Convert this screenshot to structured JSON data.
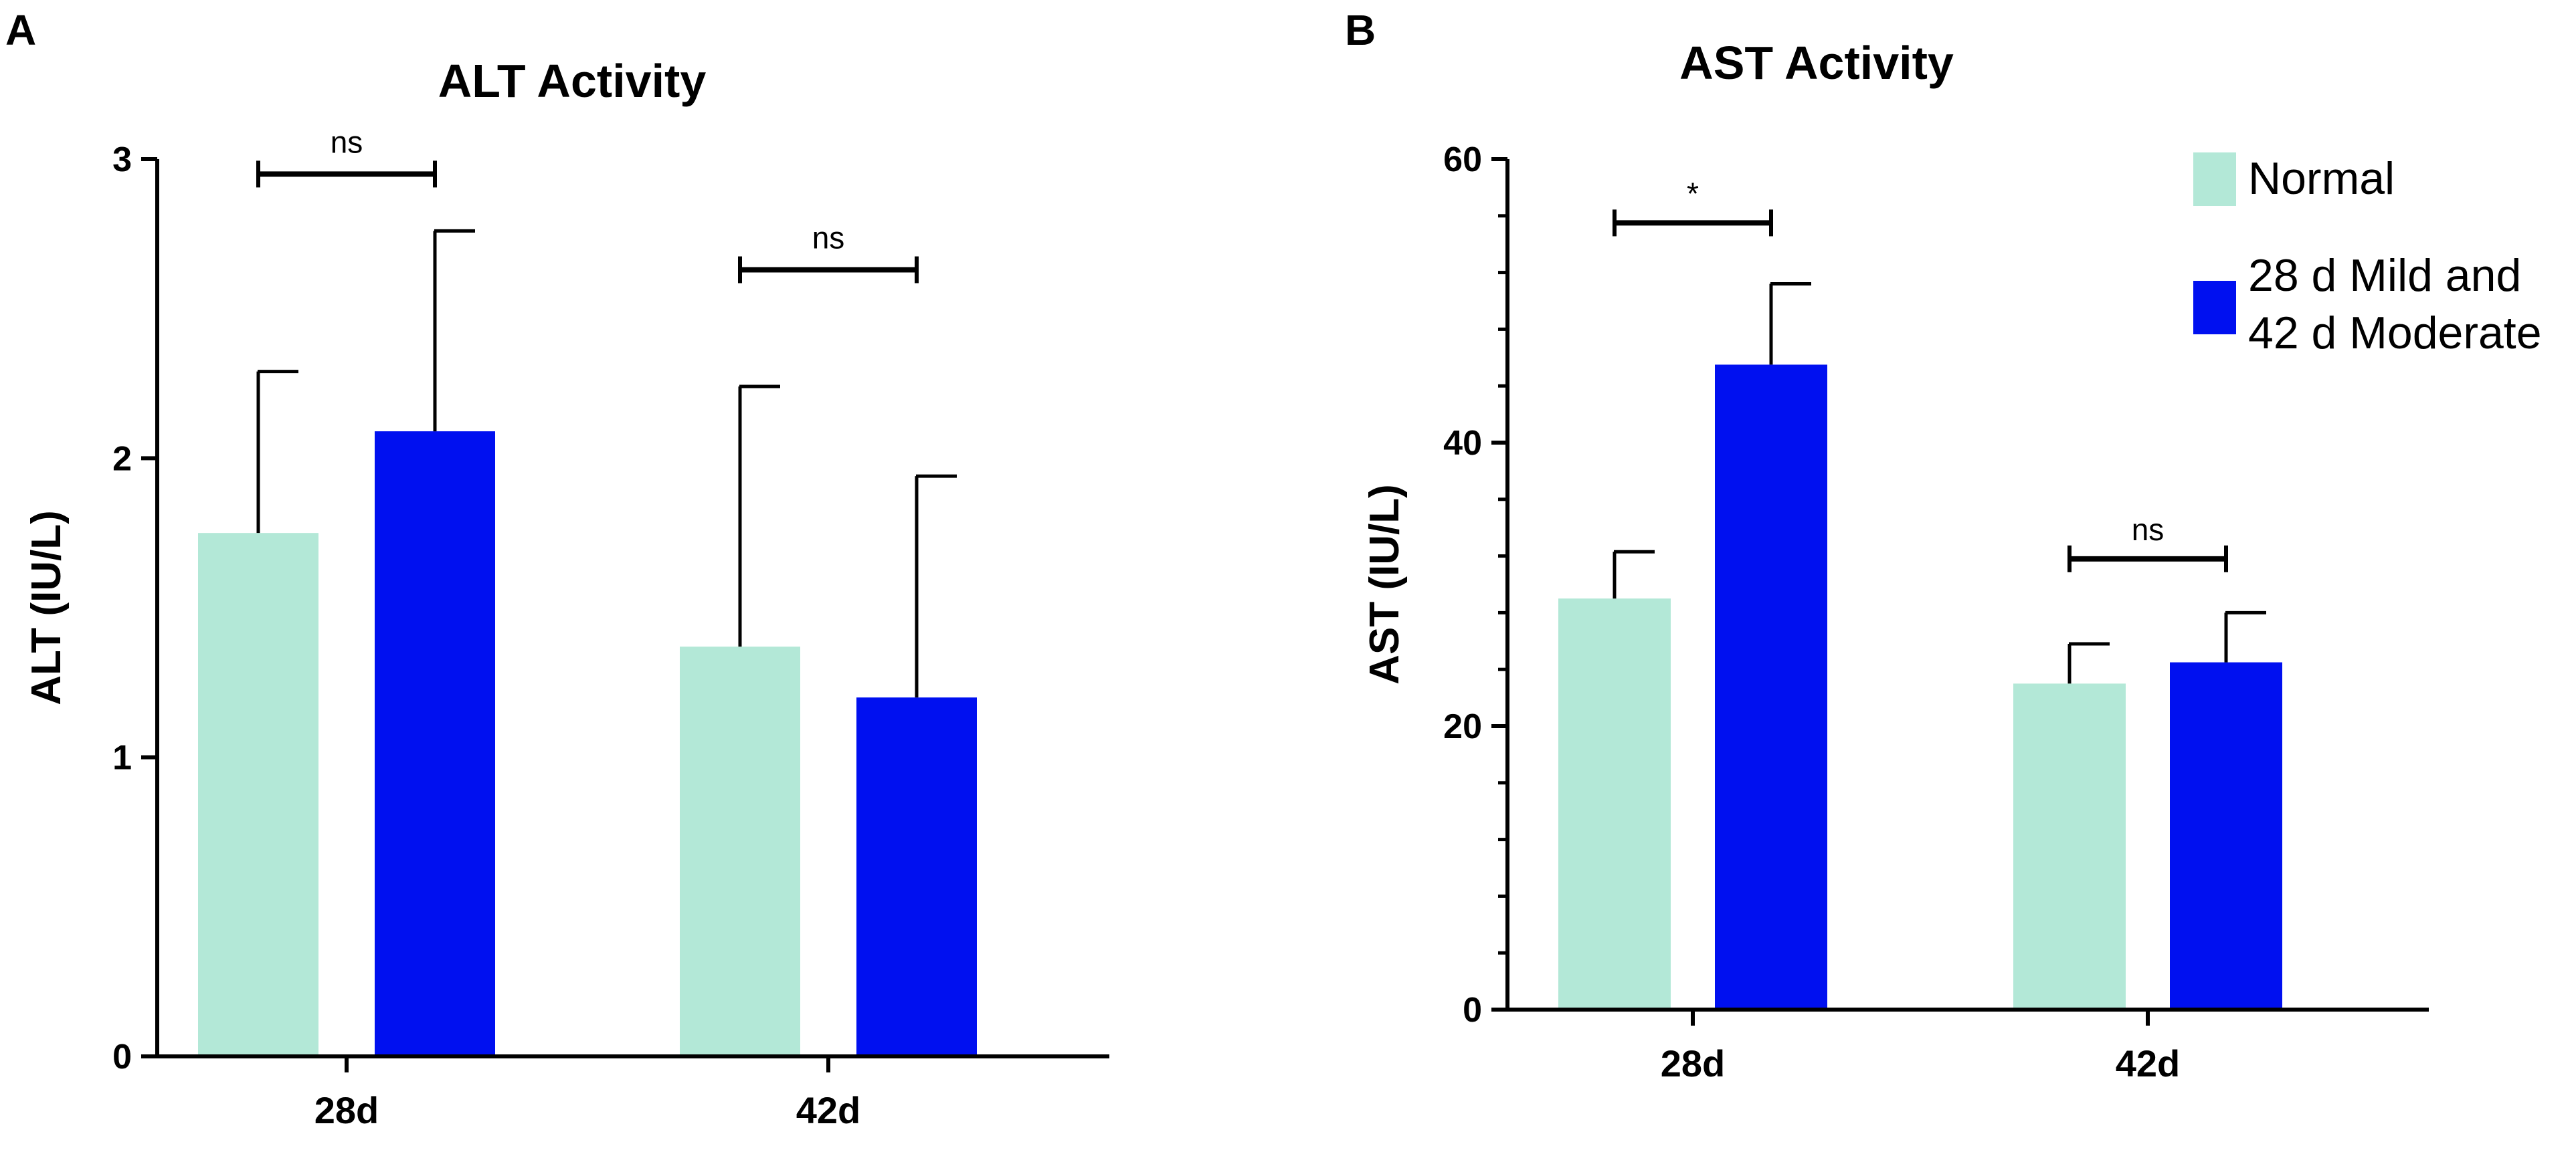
{
  "panels": {
    "A": {
      "letter": "A"
    },
    "B": {
      "letter": "B"
    }
  },
  "colors": {
    "normal": "#b3e8d7",
    "treatment": "#0010f0",
    "axis": "#000000"
  },
  "legend": {
    "position": "top-right",
    "entries": [
      {
        "series": "normal",
        "lines": [
          "Normal"
        ]
      },
      {
        "series": "treatment",
        "lines": [
          "28 d Mild and",
          "42 d Moderate"
        ]
      }
    ]
  },
  "chart_data": [
    {
      "id": "A",
      "type": "bar",
      "title": "ALT Activity",
      "xlabel": "",
      "ylabel": "ALT (IU/L)",
      "ylim": [
        0,
        3
      ],
      "yticks": [
        "0",
        "1",
        "2",
        "3"
      ],
      "minor_ticks_per_major": 0,
      "categories": [
        "28d",
        "42d"
      ],
      "series": [
        {
          "name": "Normal",
          "values": [
            1.75,
            1.37
          ],
          "errors": [
            0.54,
            0.87
          ]
        },
        {
          "name": "28 d Mild and 42 d Moderate",
          "values": [
            2.09,
            1.2
          ],
          "errors": [
            0.67,
            0.74
          ]
        }
      ],
      "significance": [
        "ns",
        "ns"
      ],
      "sig_levels": [
        2.95,
        2.63
      ]
    },
    {
      "id": "B",
      "type": "bar",
      "title": "AST Activity",
      "xlabel": "",
      "ylabel": "AST (IU/L)",
      "ylim": [
        0,
        60
      ],
      "yticks": [
        "0",
        "20",
        "40",
        "60"
      ],
      "minor_ticks_per_major": 4,
      "categories": [
        "28d",
        "42d"
      ],
      "series": [
        {
          "name": "Normal",
          "values": [
            29,
            23
          ],
          "errors": [
            3.3,
            2.8
          ]
        },
        {
          "name": "28 d Mild and 42 d Moderate",
          "values": [
            45.5,
            24.5
          ],
          "errors": [
            5.7,
            3.5
          ]
        }
      ],
      "significance": [
        "*",
        "ns"
      ],
      "sig_levels": [
        55.5,
        31.8
      ]
    }
  ]
}
